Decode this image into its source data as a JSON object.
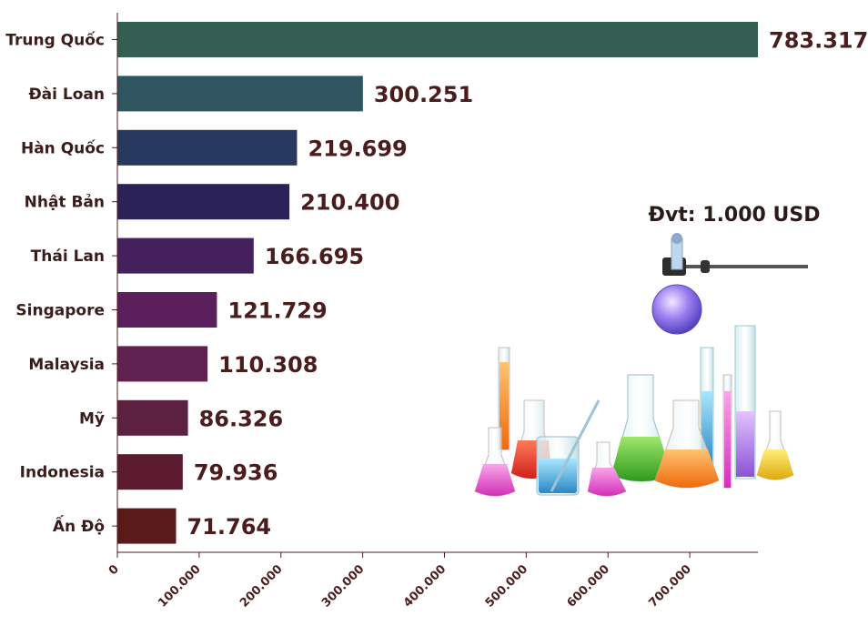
{
  "chart_data": {
    "type": "bar",
    "orientation": "horizontal",
    "categories": [
      "Trung Quốc",
      "Đài Loan",
      "Hàn Quốc",
      "Nhật Bản",
      "Thái Lan",
      "Singapore",
      "Malaysia",
      "Mỹ",
      "Indonesia",
      "Ấn Độ"
    ],
    "values": [
      783317,
      300251,
      219699,
      210400,
      166695,
      121729,
      110308,
      86326,
      79936,
      71764
    ],
    "value_labels": [
      "783.317",
      "300.251",
      "219.699",
      "210.400",
      "166.695",
      "121.729",
      "110.308",
      "86.326",
      "79.936",
      "71.764"
    ],
    "bar_colors": [
      "#355e52",
      "#2f5560",
      "#27395e",
      "#2b2358",
      "#44205c",
      "#5c1f5e",
      "#5e2150",
      "#5c2040",
      "#5c1a2e",
      "#5a1a1a"
    ],
    "x_ticks": [
      "0",
      "100.000",
      "200.000",
      "300.000",
      "400.000",
      "500.000",
      "600.000",
      "700.000"
    ],
    "xlim": [
      0,
      783317
    ],
    "unit_label": "Đvt: 1.000 USD",
    "grid": false,
    "legend": "none"
  },
  "illustration": {
    "icon": "laboratory-glassware-icon"
  }
}
